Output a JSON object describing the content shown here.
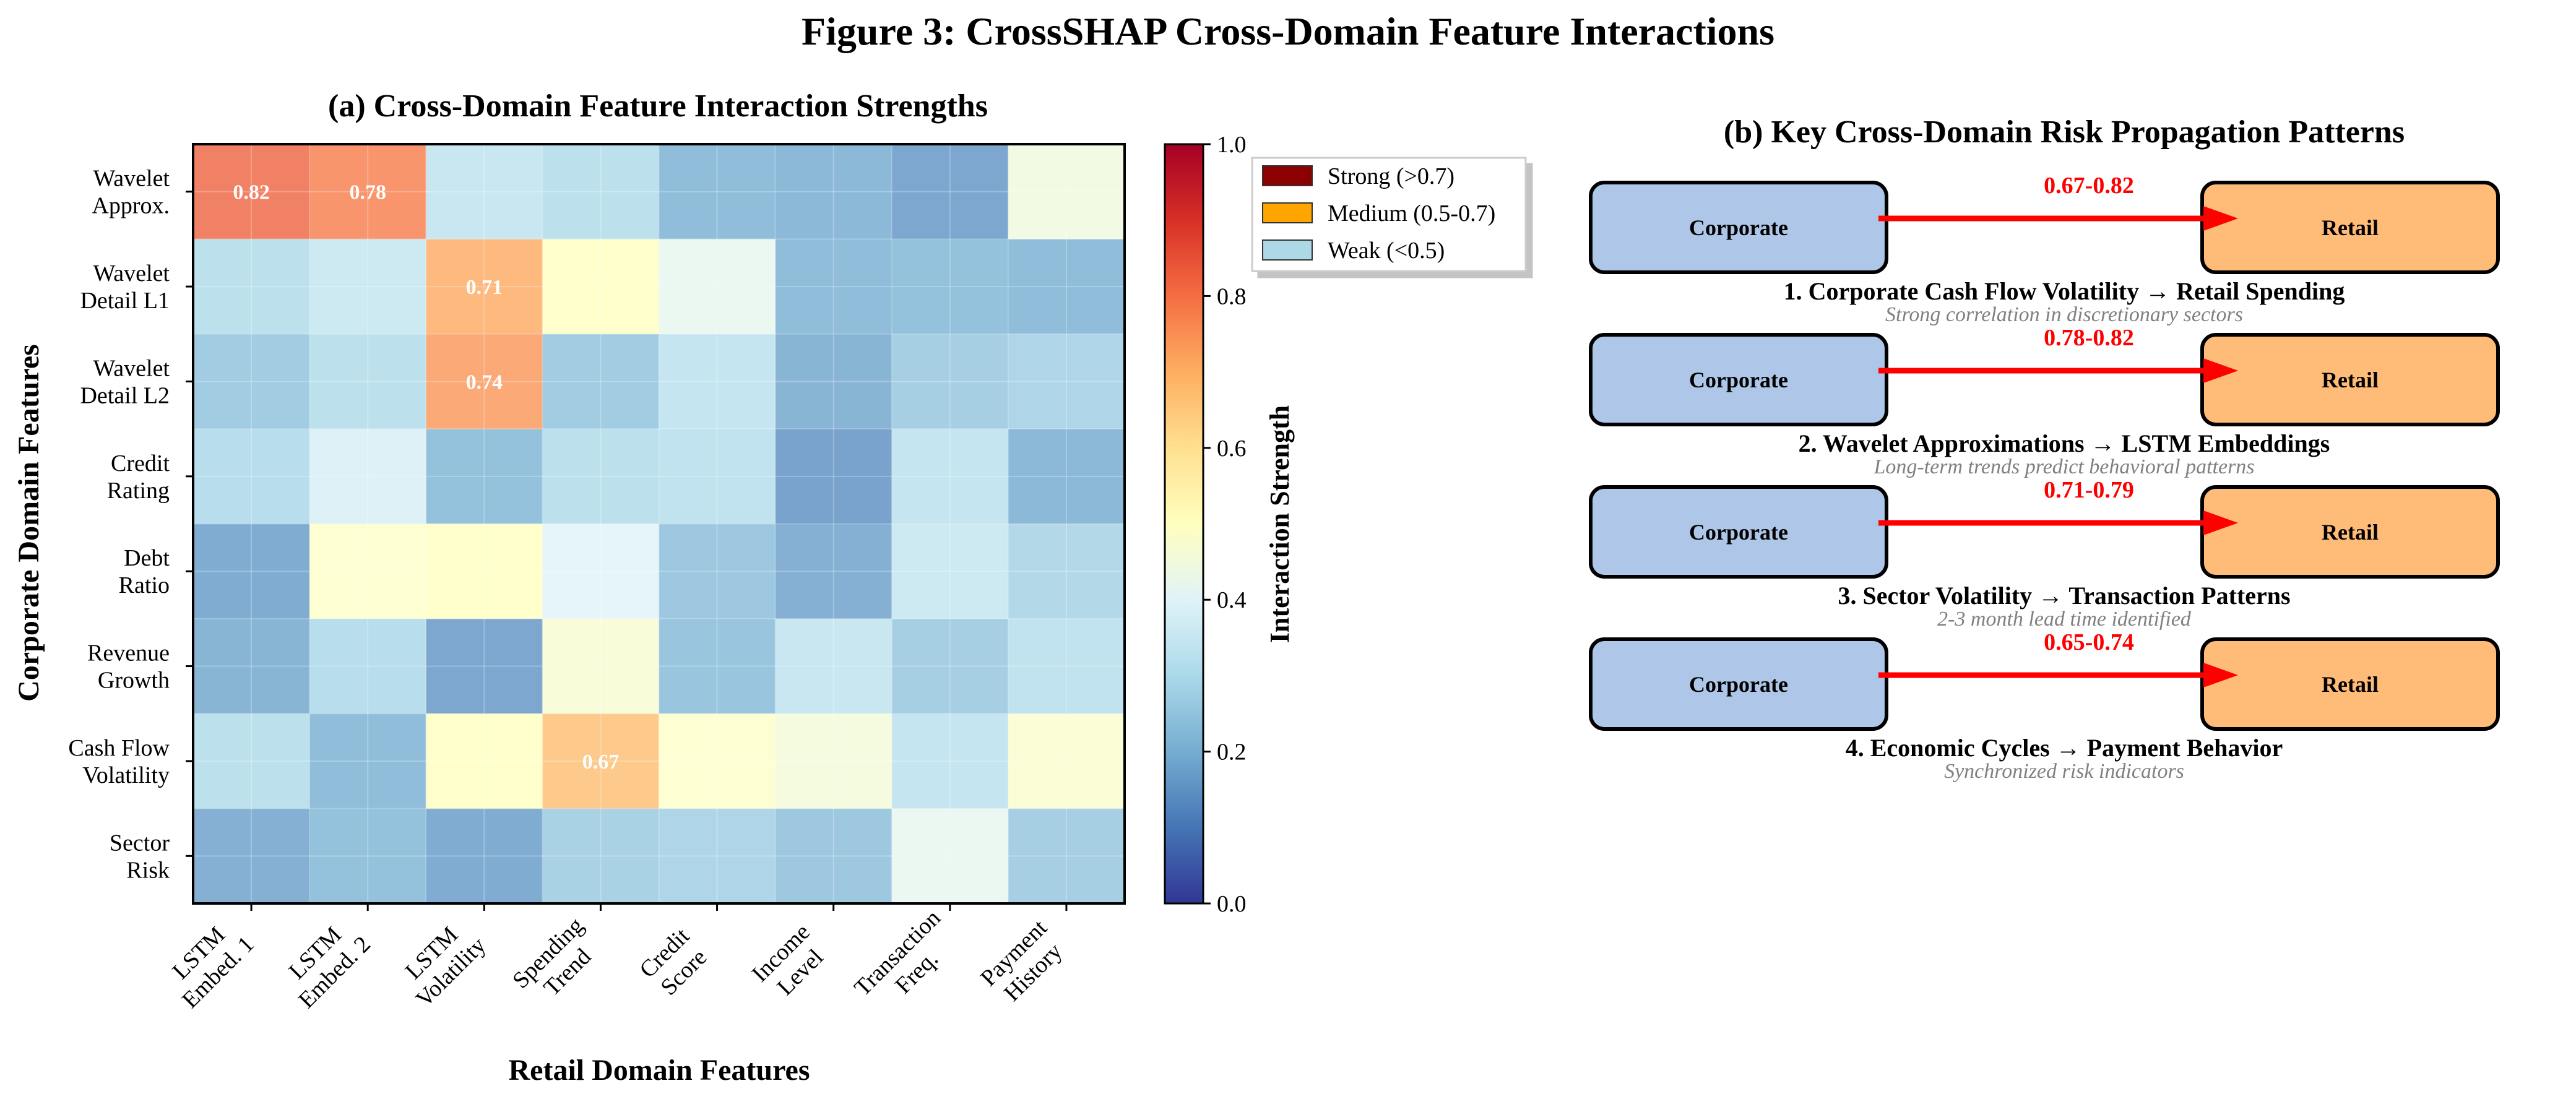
{
  "figure": {
    "title": "Figure 3: CrossSHAP Cross-Domain Feature Interactions"
  },
  "chart_data": [
    {
      "type": "heatmap",
      "title": "(a) Cross-Domain Feature Interaction Strengths",
      "xlabel": "Retail Domain Features",
      "ylabel": "Corporate Domain Features",
      "x_categories": [
        "LSTM\nEmbed. 1",
        "LSTM\nEmbed. 2",
        "LSTM\nVolatility",
        "Spending\nTrend",
        "Credit\nScore",
        "Income\nLevel",
        "Transaction\nFreq.",
        "Payment\nHistory"
      ],
      "y_categories": [
        "Wavelet\nApprox.",
        "Wavelet\nDetail L1",
        "Wavelet\nDetail L2",
        "Credit\nRating",
        "Debt\nRatio",
        "Revenue\nGrowth",
        "Cash Flow\nVolatility",
        "Sector\nRisk"
      ],
      "values": [
        [
          0.82,
          0.78,
          0.33,
          0.3,
          0.2,
          0.19,
          0.15,
          0.45
        ],
        [
          0.3,
          0.34,
          0.71,
          0.5,
          0.42,
          0.2,
          0.21,
          0.2
        ],
        [
          0.24,
          0.3,
          0.74,
          0.24,
          0.32,
          0.18,
          0.25,
          0.27
        ],
        [
          0.29,
          0.38,
          0.21,
          0.3,
          0.31,
          0.14,
          0.32,
          0.19
        ],
        [
          0.16,
          0.49,
          0.5,
          0.4,
          0.23,
          0.17,
          0.34,
          0.28
        ],
        [
          0.18,
          0.29,
          0.15,
          0.47,
          0.22,
          0.33,
          0.25,
          0.31
        ],
        [
          0.3,
          0.2,
          0.5,
          0.67,
          0.49,
          0.46,
          0.32,
          0.48
        ],
        [
          0.17,
          0.21,
          0.16,
          0.26,
          0.27,
          0.23,
          0.42,
          0.25
        ]
      ],
      "annotations": [
        {
          "row": 0,
          "col": 0,
          "text": "0.82"
        },
        {
          "row": 0,
          "col": 1,
          "text": "0.78"
        },
        {
          "row": 1,
          "col": 2,
          "text": "0.71"
        },
        {
          "row": 2,
          "col": 2,
          "text": "0.74"
        },
        {
          "row": 6,
          "col": 3,
          "text": "0.67"
        }
      ],
      "colorbar": {
        "label": "Interaction Strength",
        "range": [
          0,
          1
        ],
        "ticks": [
          "0.0",
          "0.2",
          "0.4",
          "0.6",
          "0.8",
          "1.0"
        ],
        "colormap": "RdYlBu_r"
      },
      "legend": {
        "position": "right",
        "entries": [
          {
            "label": "Strong (>0.7)",
            "color": "#8b0000"
          },
          {
            "label": "Medium (0.5-0.7)",
            "color": "#ffa500"
          },
          {
            "label": "Weak (<0.5)",
            "color": "#add8e6"
          }
        ]
      }
    },
    {
      "type": "diagram",
      "title": "(b) Key Cross-Domain Risk Propagation Patterns",
      "patterns": [
        {
          "source": "Corporate",
          "target": "Retail",
          "range": "0.67-0.82",
          "title": "1. Corporate Cash Flow Volatility → Retail Spending",
          "subtitle": "Strong correlation in discretionary sectors"
        },
        {
          "source": "Corporate",
          "target": "Retail",
          "range": "0.78-0.82",
          "title": "2. Wavelet Approximations → LSTM Embeddings",
          "subtitle": "Long-term trends predict behavioral patterns"
        },
        {
          "source": "Corporate",
          "target": "Retail",
          "range": "0.71-0.79",
          "title": "3. Sector Volatility → Transaction Patterns",
          "subtitle": "2-3 month lead time identified"
        },
        {
          "source": "Corporate",
          "target": "Retail",
          "range": "0.65-0.74",
          "title": "4. Economic Cycles → Payment Behavior",
          "subtitle": "Synchronized risk indicators"
        }
      ],
      "colors": {
        "source_box": "#aec7e8",
        "target_box": "#ffbb78",
        "arrow": "#ff0000",
        "range_text": "#ff0000",
        "subtitle_text": "#808080"
      }
    }
  ]
}
